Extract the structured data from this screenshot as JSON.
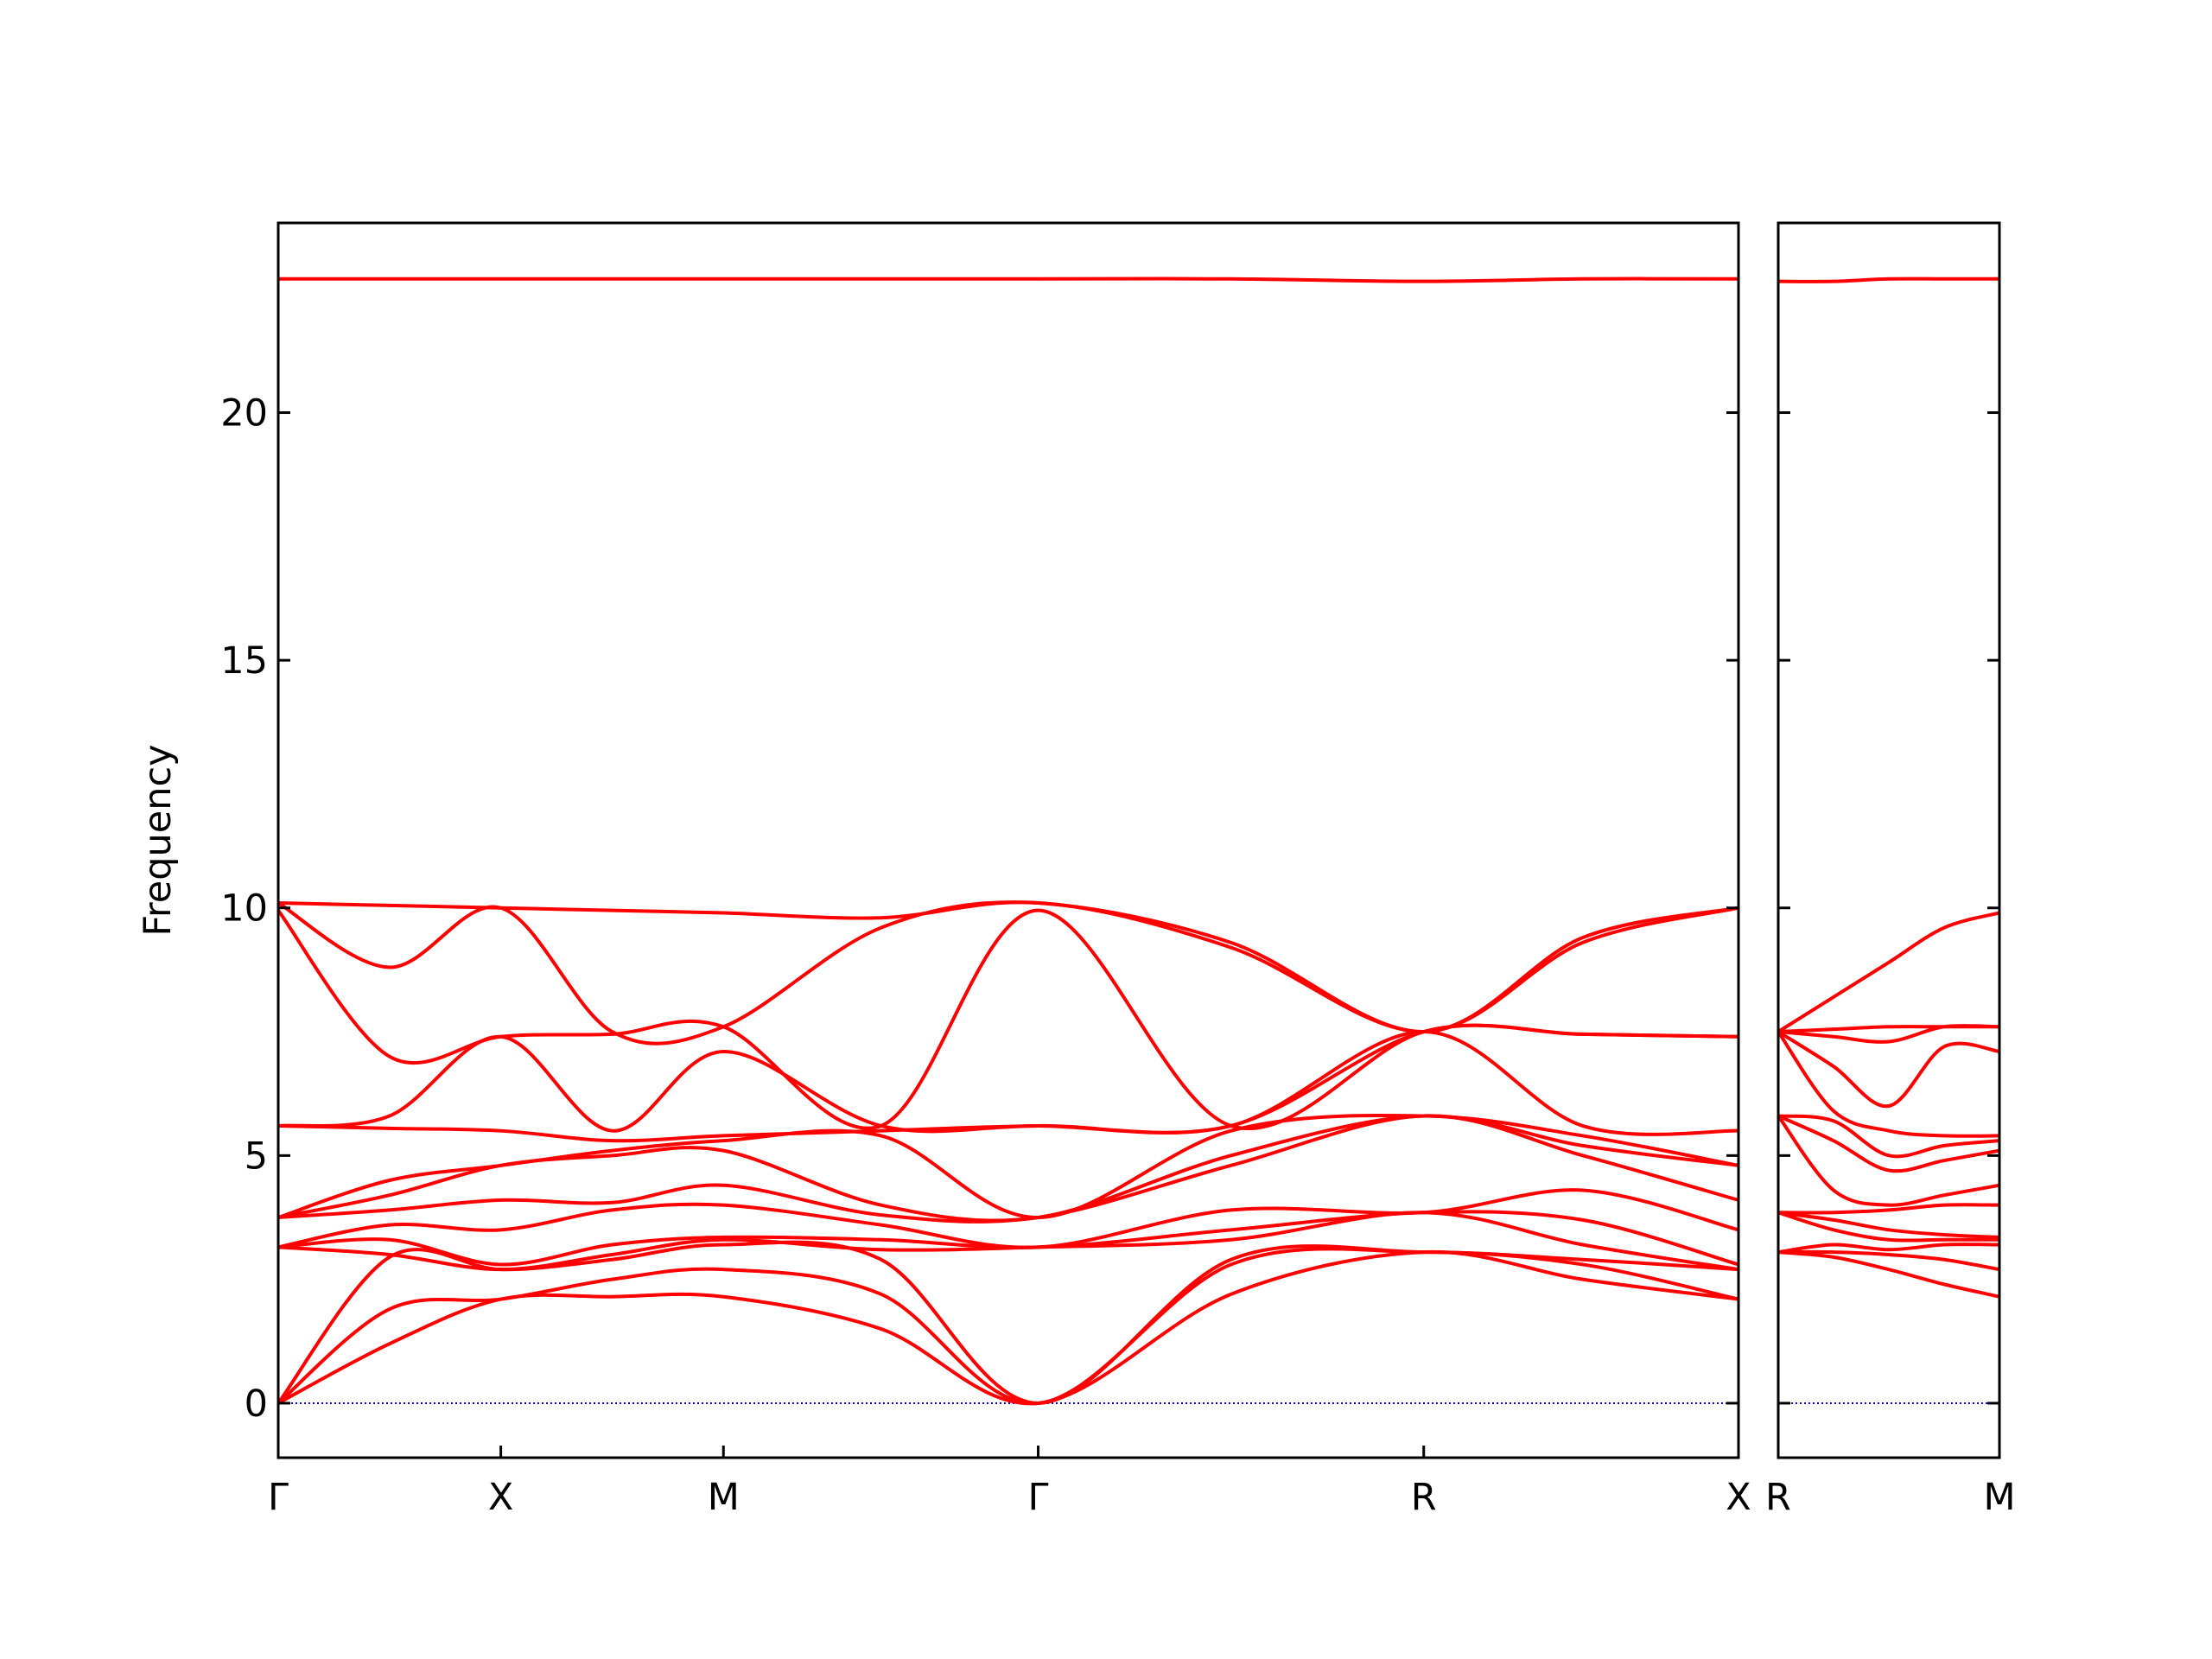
{
  "chart_data": [
    {
      "type": "line",
      "ylabel": "Frequency",
      "color": "#ff0000",
      "hline": 0,
      "hline_color": "#0000cc",
      "xlim": [
        0,
        3.28
      ],
      "ylim": [
        -1.1,
        23.83
      ],
      "xticks": [
        {
          "value": 0,
          "label": "Γ"
        },
        {
          "value": 0.5,
          "label": "X"
        },
        {
          "value": 1.0,
          "label": "M"
        },
        {
          "value": 1.707,
          "label": "Γ"
        },
        {
          "value": 2.573,
          "label": "R"
        },
        {
          "value": 3.28,
          "label": "X"
        }
      ],
      "yticks": [
        0,
        5,
        10,
        15,
        20
      ],
      "x": [
        0,
        0.25,
        0.5,
        0.75,
        1.0,
        1.354,
        1.707,
        2.14,
        2.573,
        2.93,
        3.28
      ],
      "series": [
        {
          "values": [
            0,
            1.2,
            2.1,
            2.15,
            2.15,
            1.5,
            0,
            2.2,
            3.05,
            2.5,
            2.1
          ]
        },
        {
          "values": [
            0,
            1.9,
            2.1,
            2.5,
            2.7,
            2.2,
            0,
            2.8,
            3.05,
            2.8,
            2.1
          ]
        },
        {
          "values": [
            0,
            2.95,
            2.7,
            2.9,
            3.2,
            2.9,
            0,
            2.9,
            3.05,
            2.9,
            2.7
          ]
        },
        {
          "values": [
            3.15,
            3.0,
            2.7,
            3.0,
            3.3,
            3.1,
            3.15,
            3.3,
            3.85,
            3.2,
            2.7
          ]
        },
        {
          "values": [
            3.15,
            3.3,
            2.8,
            3.2,
            3.35,
            3.3,
            3.15,
            3.5,
            3.85,
            3.7,
            2.8
          ]
        },
        {
          "values": [
            3.15,
            3.6,
            3.5,
            3.9,
            4.0,
            3.6,
            3.15,
            3.9,
            3.85,
            4.3,
            3.5
          ]
        },
        {
          "values": [
            3.75,
            3.9,
            4.1,
            4.05,
            4.4,
            3.8,
            3.75,
            4.8,
            5.8,
            5.0,
            4.1
          ]
        },
        {
          "values": [
            3.75,
            4.2,
            4.8,
            5.0,
            5.1,
            4.0,
            3.75,
            5.0,
            5.8,
            5.2,
            4.8
          ]
        },
        {
          "values": [
            3.75,
            4.5,
            4.8,
            5.1,
            5.3,
            5.4,
            3.75,
            5.5,
            5.8,
            5.4,
            4.8
          ]
        },
        {
          "values": [
            5.6,
            5.55,
            5.5,
            5.3,
            5.4,
            5.5,
            5.6,
            5.6,
            7.5,
            5.6,
            5.5
          ]
        },
        {
          "values": [
            5.6,
            5.8,
            7.4,
            5.5,
            7.1,
            5.6,
            5.6,
            5.6,
            7.5,
            7.45,
            7.4
          ]
        },
        {
          "values": [
            9.95,
            7.0,
            7.4,
            7.45,
            7.6,
            5.6,
            9.95,
            5.6,
            7.5,
            7.45,
            7.4
          ]
        },
        {
          "values": [
            10.1,
            8.8,
            10.0,
            7.5,
            7.6,
            9.6,
            10.1,
            9.2,
            7.5,
            9.3,
            10.0
          ]
        },
        {
          "values": [
            10.1,
            10.05,
            10.0,
            9.95,
            9.9,
            9.8,
            10.1,
            9.3,
            7.5,
            9.4,
            10.0
          ]
        },
        {
          "values": [
            22.7,
            22.7,
            22.7,
            22.7,
            22.7,
            22.7,
            22.7,
            22.7,
            22.65,
            22.7,
            22.7
          ]
        }
      ]
    },
    {
      "type": "line",
      "color": "#ff0000",
      "hline": 0,
      "hline_color": "#0000cc",
      "xlim": [
        0,
        0.5
      ],
      "ylim": [
        -1.1,
        23.83
      ],
      "xticks": [
        {
          "value": 0,
          "label": "R"
        },
        {
          "value": 0.5,
          "label": "M"
        }
      ],
      "yticks": [
        0,
        5,
        10,
        15,
        20
      ],
      "x": [
        0,
        0.125,
        0.25,
        0.375,
        0.5
      ],
      "series": [
        {
          "values": [
            3.05,
            2.95,
            2.7,
            2.4,
            2.15
          ]
        },
        {
          "values": [
            3.05,
            3.05,
            3.0,
            2.9,
            2.7
          ]
        },
        {
          "values": [
            3.05,
            3.2,
            3.1,
            3.2,
            3.2
          ]
        },
        {
          "values": [
            3.85,
            3.5,
            3.3,
            3.3,
            3.3
          ]
        },
        {
          "values": [
            3.85,
            3.7,
            3.5,
            3.4,
            3.35
          ]
        },
        {
          "values": [
            3.85,
            3.85,
            3.9,
            4.0,
            4.0
          ]
        },
        {
          "values": [
            5.8,
            4.3,
            4.0,
            4.2,
            4.4
          ]
        },
        {
          "values": [
            5.8,
            5.3,
            4.7,
            4.9,
            5.1
          ]
        },
        {
          "values": [
            5.8,
            5.7,
            5.0,
            5.2,
            5.3
          ]
        },
        {
          "values": [
            7.5,
            5.9,
            5.5,
            5.4,
            5.4
          ]
        },
        {
          "values": [
            7.5,
            6.8,
            6.0,
            7.2,
            7.1
          ]
        },
        {
          "values": [
            7.5,
            7.4,
            7.3,
            7.6,
            7.6
          ]
        },
        {
          "values": [
            7.5,
            7.55,
            7.6,
            7.6,
            7.6
          ]
        },
        {
          "values": [
            7.5,
            8.2,
            8.9,
            9.6,
            9.9
          ]
        },
        {
          "values": [
            22.65,
            22.65,
            22.7,
            22.7,
            22.7
          ]
        }
      ]
    }
  ]
}
